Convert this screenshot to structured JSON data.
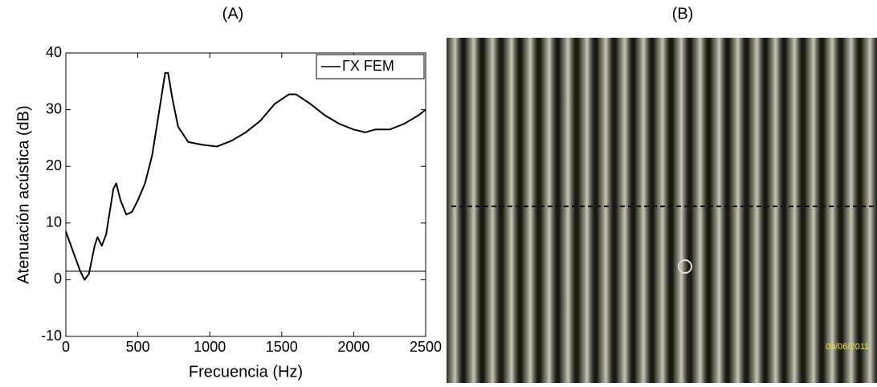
{
  "chart_data": {
    "type": "line",
    "title": "(A)",
    "x_label": "Frecuencia (Hz)",
    "y_label": "Atenuación acústica (dB)",
    "x": [
      0,
      50,
      100,
      130,
      160,
      200,
      220,
      250,
      280,
      330,
      350,
      380,
      420,
      460,
      500,
      550,
      600,
      650,
      690,
      710,
      740,
      780,
      850,
      950,
      1050,
      1150,
      1250,
      1350,
      1450,
      1550,
      1600,
      1700,
      1800,
      1900,
      2000,
      2080,
      2150,
      2250,
      2350,
      2450,
      2500
    ],
    "series": [
      {
        "name": "ΓX FEM",
        "color": "#000000",
        "values": [
          8.5,
          5,
          1.5,
          0,
          1,
          6,
          7.5,
          6,
          8,
          16,
          17,
          14,
          11.5,
          12,
          14,
          17,
          22,
          30,
          36.5,
          36.5,
          32,
          27,
          24.3,
          23.8,
          23.5,
          24.5,
          26,
          28,
          31,
          32.7,
          32.7,
          31,
          29,
          27.5,
          26.5,
          26,
          26.5,
          26.5,
          27.5,
          29,
          30
        ]
      }
    ],
    "hline": 1.5,
    "xlim": [
      0,
      2500
    ],
    "xticks": [
      0,
      500,
      1000,
      1500,
      2000,
      2500
    ],
    "ylim": [
      -10,
      40
    ],
    "yticks": [
      -10,
      0,
      10,
      20,
      30,
      40
    ],
    "grid": false,
    "legend": "upper right"
  },
  "photo": {
    "label": "(B)",
    "date_stamp": "09/06/2011"
  }
}
